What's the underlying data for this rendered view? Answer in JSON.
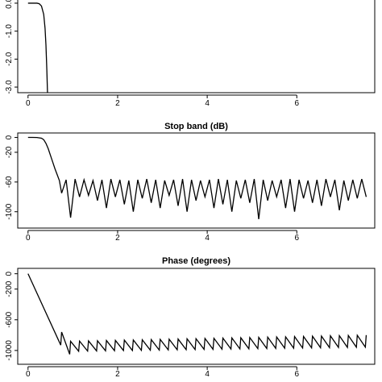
{
  "chart_data": [
    {
      "type": "line",
      "color": "#000000",
      "x": [
        0,
        0.1,
        0.2,
        0.25,
        0.3,
        0.35,
        0.38,
        0.4,
        0.42,
        0.44
      ],
      "values": [
        0,
        0,
        0,
        -0.02,
        -0.1,
        -0.4,
        -0.9,
        -1.5,
        -2.4,
        -3.5
      ],
      "xlim": [
        -0.23,
        7.74
      ],
      "xticks": [
        0,
        2,
        4,
        6
      ],
      "ylim": [
        -3.2,
        0.2
      ],
      "yticks": [
        {
          "value": 0,
          "label": "0.0"
        },
        {
          "value": -1,
          "label": "-1.0"
        },
        {
          "value": -2,
          "label": "-2.0"
        },
        {
          "value": -3,
          "label": "-3.0"
        }
      ]
    },
    {
      "type": "line",
      "title": "Stop band (dB)",
      "color": "#000000",
      "x": [
        0,
        0.1,
        0.2,
        0.3,
        0.35,
        0.4,
        0.45,
        0.5,
        0.55,
        0.6,
        0.65,
        0.7,
        0.75,
        0.85,
        0.95,
        1.05,
        1.15,
        1.25,
        1.35,
        1.45,
        1.55,
        1.65,
        1.75,
        1.85,
        1.95,
        2.05,
        2.15,
        2.25,
        2.35,
        2.45,
        2.55,
        2.65,
        2.75,
        2.85,
        2.95,
        3.05,
        3.15,
        3.25,
        3.35,
        3.45,
        3.55,
        3.65,
        3.75,
        3.85,
        3.95,
        4.05,
        4.15,
        4.25,
        4.35,
        4.45,
        4.55,
        4.65,
        4.75,
        4.85,
        4.95,
        5.05,
        5.15,
        5.25,
        5.35,
        5.45,
        5.55,
        5.65,
        5.75,
        5.85,
        5.95,
        6.05,
        6.15,
        6.25,
        6.35,
        6.45,
        6.55,
        6.65,
        6.75,
        6.85,
        6.95,
        7.05,
        7.15,
        7.25,
        7.35,
        7.45,
        7.55
      ],
      "values": [
        0,
        0,
        -0.1,
        -1,
        -3,
        -8,
        -15,
        -24,
        -33,
        -42,
        -50,
        -58,
        -75,
        -57,
        -108,
        -56,
        -80,
        -57,
        -78,
        -58,
        -85,
        -57,
        -95,
        -56,
        -80,
        -57,
        -90,
        -58,
        -100,
        -57,
        -82,
        -56,
        -88,
        -57,
        -95,
        -58,
        -78,
        -57,
        -92,
        -56,
        -100,
        -57,
        -85,
        -58,
        -80,
        -57,
        -95,
        -56,
        -90,
        -57,
        -100,
        -58,
        -82,
        -57,
        -88,
        -56,
        -110,
        -57,
        -85,
        -58,
        -80,
        -57,
        -95,
        -56,
        -100,
        -57,
        -82,
        -58,
        -88,
        -57,
        -92,
        -56,
        -80,
        -57,
        -98,
        -58,
        -85,
        -57,
        -82,
        -56,
        -80
      ],
      "xlim": [
        -0.23,
        7.74
      ],
      "xticks": [
        0,
        2,
        4,
        6
      ],
      "ylim": [
        -122,
        6
      ],
      "yticks": [
        0,
        -20,
        -60,
        -100
      ]
    },
    {
      "type": "line",
      "title": "Phase (degrees)",
      "color": "#000000",
      "x": [
        0,
        0.73,
        0.75,
        0.93,
        0.95,
        1.13,
        1.15,
        1.33,
        1.35,
        1.53,
        1.55,
        1.73,
        1.75,
        1.93,
        1.95,
        2.13,
        2.15,
        2.33,
        2.35,
        2.53,
        2.55,
        2.73,
        2.75,
        2.93,
        2.95,
        3.13,
        3.15,
        3.33,
        3.35,
        3.53,
        3.55,
        3.73,
        3.75,
        3.93,
        3.95,
        4.13,
        4.15,
        4.33,
        4.35,
        4.53,
        4.55,
        4.73,
        4.75,
        4.93,
        4.95,
        5.13,
        5.15,
        5.33,
        5.35,
        5.53,
        5.55,
        5.73,
        5.75,
        5.93,
        5.95,
        6.13,
        6.15,
        6.33,
        6.35,
        6.53,
        6.55,
        6.73,
        6.75,
        6.93,
        6.95,
        7.13,
        7.15,
        7.33,
        7.35,
        7.53,
        7.55
      ],
      "values": [
        0,
        -930,
        -760,
        -1050,
        -880,
        -1010,
        -878,
        -1008,
        -875,
        -1006,
        -873,
        -1005,
        -870,
        -1003,
        -868,
        -1001,
        -865,
        -1000,
        -863,
        -998,
        -860,
        -996,
        -858,
        -995,
        -856,
        -993,
        -853,
        -991,
        -851,
        -990,
        -848,
        -988,
        -846,
        -986,
        -843,
        -985,
        -841,
        -983,
        -839,
        -981,
        -836,
        -980,
        -834,
        -978,
        -831,
        -976,
        -829,
        -975,
        -826,
        -973,
        -824,
        -971,
        -822,
        -970,
        -819,
        -968,
        -817,
        -966,
        -814,
        -965,
        -812,
        -963,
        -809,
        -961,
        -807,
        -960,
        -805,
        -958,
        -802,
        -956,
        -800
      ],
      "xlim": [
        -0.23,
        7.74
      ],
      "xticks": [
        0,
        2,
        4,
        6
      ],
      "ylim": [
        -1180,
        70
      ],
      "yticks": [
        0,
        -200,
        -600,
        -1000
      ]
    }
  ]
}
